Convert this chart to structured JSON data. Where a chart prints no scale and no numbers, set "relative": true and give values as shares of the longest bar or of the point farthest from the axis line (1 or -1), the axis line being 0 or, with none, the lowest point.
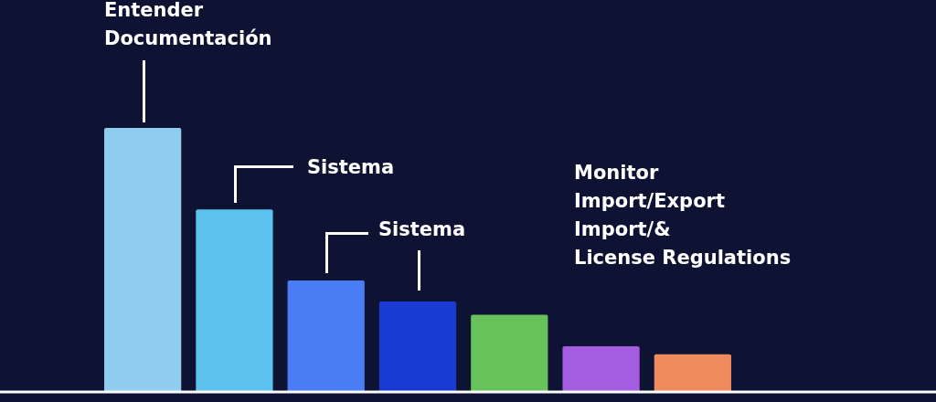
{
  "chart_data": {
    "type": "bar",
    "relative": true,
    "categories": [
      null,
      null,
      null,
      null,
      null,
      null,
      null
    ],
    "values": [
      1,
      0.69,
      0.42,
      0.34,
      0.29,
      0.17,
      0.14
    ],
    "colors": [
      "#8ecdf0",
      "#5cc3ef",
      "#4a7cf5",
      "#1a3ad6",
      "#67c25c",
      "#a45ce0",
      "#f08a5c"
    ],
    "annotations": [
      "Entender\nDocumentación",
      "Sistema",
      "Sistema",
      "Monitor\nImport/Export\nImport/&\nLicense Regulations"
    ]
  }
}
